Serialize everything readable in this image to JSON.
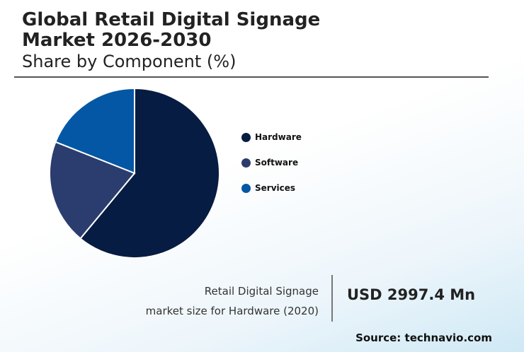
{
  "header": {
    "title": "Global Retail Digital Signage\nMarket 2026-2030",
    "subtitle": "Share by Component (%)"
  },
  "chart_data": {
    "type": "pie",
    "categories": [
      "Hardware",
      "Software",
      "Services"
    ],
    "values": [
      61,
      20,
      19
    ],
    "colors": [
      "#071c42",
      "#2b3d6e",
      "#0457a4"
    ],
    "legend_position": "right"
  },
  "kpi": {
    "caption_line1": "Retail Digital Signage",
    "caption_line2": "market size for Hardware (2020)",
    "value": "USD 2997.4 Mn"
  },
  "footer": {
    "source": "Source: technavio.com"
  }
}
